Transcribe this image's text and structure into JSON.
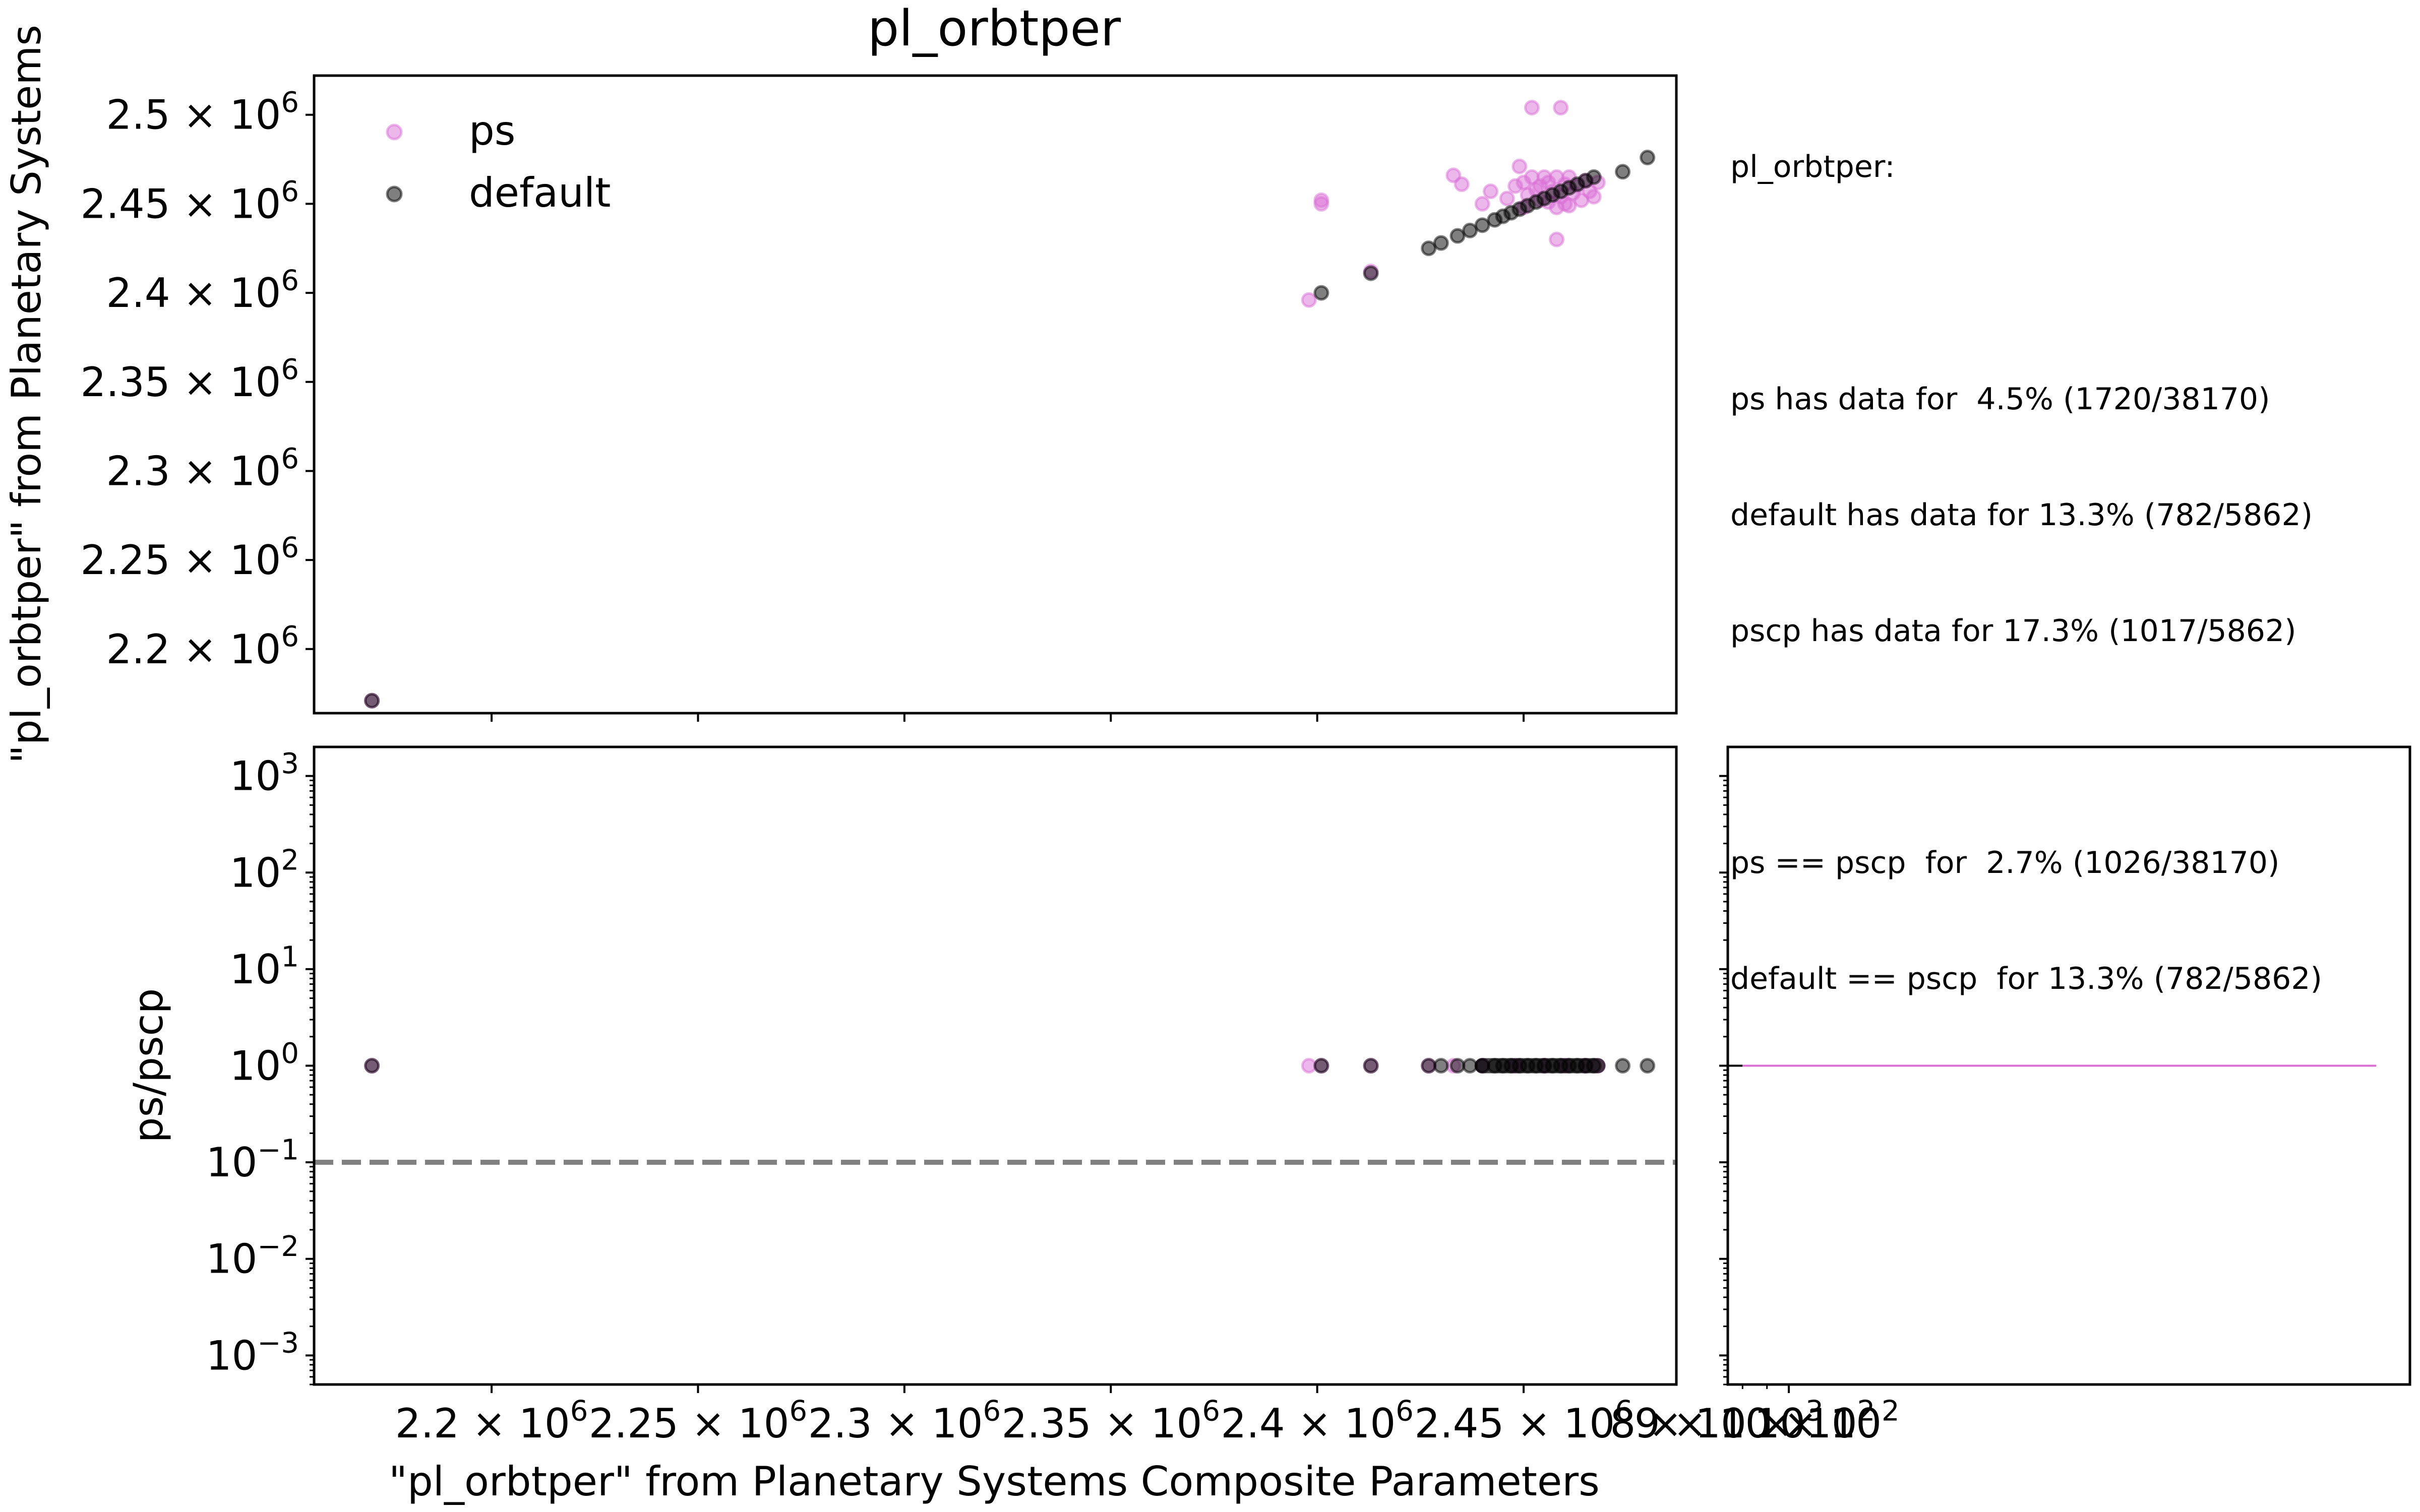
{
  "title": "pl_orbtper",
  "legend": [
    {
      "name": "ps",
      "color": "#da70d6"
    },
    {
      "name": "default",
      "color": "#000000"
    }
  ],
  "stats_lines": [
    "pl_orbtper:",
    "",
    "ps has data for  4.5% (1720/38170)",
    "default has data for 13.3% (782/5862)",
    "pscp has data for 17.3% (1017/5862)",
    "",
    "ps == pscp  for  2.7% (1026/38170)",
    "default == pscp  for 13.3% (782/5862)"
  ],
  "chart_data": [
    {
      "type": "scatter",
      "panel": "top",
      "title": "pl_orbtper",
      "xlabel": "",
      "ylabel": "\"pl_orbtper\" from Planetary Systems",
      "xlim": [
        2157000,
        2487000
      ],
      "ylim": [
        2164000,
        2522000
      ],
      "yticks": [
        2200000,
        2250000,
        2300000,
        2350000,
        2400000,
        2450000,
        2500000
      ],
      "ytick_labels": [
        {
          "base": "2.2",
          "exp": "6"
        },
        {
          "base": "2.25",
          "exp": "6"
        },
        {
          "base": "2.3",
          "exp": "6"
        },
        {
          "base": "2.35",
          "exp": "6"
        },
        {
          "base": "2.4",
          "exp": "6"
        },
        {
          "base": "2.45",
          "exp": "6"
        },
        {
          "base": "2.5",
          "exp": "6"
        }
      ],
      "xticks": [
        2200000,
        2250000,
        2300000,
        2350000,
        2400000,
        2450000
      ],
      "legend_position": "upper-left",
      "grid": false,
      "series": [
        {
          "name": "ps",
          "color": "#da70d6",
          "points": [
            [
              2171000,
              2171000
            ],
            [
              2398000,
              2396000
            ],
            [
              2401000,
              2452000
            ],
            [
              2401000,
              2450000
            ],
            [
              2413000,
              2412000
            ],
            [
              2433000,
              2466000
            ],
            [
              2435000,
              2461000
            ],
            [
              2440000,
              2450000
            ],
            [
              2442000,
              2457000
            ],
            [
              2446000,
              2453000
            ],
            [
              2448000,
              2460000
            ],
            [
              2449000,
              2471000
            ],
            [
              2450000,
              2462000
            ],
            [
              2451000,
              2455000
            ],
            [
              2452000,
              2465000
            ],
            [
              2453000,
              2458000
            ],
            [
              2454000,
              2452000
            ],
            [
              2454000,
              2460000
            ],
            [
              2455000,
              2465000
            ],
            [
              2456000,
              2451000
            ],
            [
              2456000,
              2462000
            ],
            [
              2457000,
              2457000
            ],
            [
              2458000,
              2448000
            ],
            [
              2458000,
              2465000
            ],
            [
              2459000,
              2454000
            ],
            [
              2460000,
              2461000
            ],
            [
              2460000,
              2450000
            ],
            [
              2461000,
              2465000
            ],
            [
              2462000,
              2456000
            ],
            [
              2463000,
              2460000
            ],
            [
              2464000,
              2452000
            ],
            [
              2465000,
              2463000
            ],
            [
              2466000,
              2457000
            ],
            [
              2467000,
              2454000
            ],
            [
              2468000,
              2462000
            ],
            [
              2452000,
              2504000
            ],
            [
              2459000,
              2504000
            ],
            [
              2458000,
              2430000
            ],
            [
              2450000,
              2448000
            ],
            [
              2461000,
              2449000
            ]
          ]
        },
        {
          "name": "default",
          "color": "#000000",
          "points": [
            [
              2171000,
              2171000
            ],
            [
              2401000,
              2400000
            ],
            [
              2413000,
              2411000
            ],
            [
              2427000,
              2425000
            ],
            [
              2430000,
              2428000
            ],
            [
              2434000,
              2432000
            ],
            [
              2437000,
              2435000
            ],
            [
              2440000,
              2438000
            ],
            [
              2443000,
              2441000
            ],
            [
              2445000,
              2443000
            ],
            [
              2447000,
              2445000
            ],
            [
              2449000,
              2447000
            ],
            [
              2451000,
              2449000
            ],
            [
              2453000,
              2451000
            ],
            [
              2455000,
              2453000
            ],
            [
              2457000,
              2455000
            ],
            [
              2459000,
              2457000
            ],
            [
              2461000,
              2459000
            ],
            [
              2463000,
              2461000
            ],
            [
              2465000,
              2463000
            ],
            [
              2467000,
              2465000
            ],
            [
              2474000,
              2468000
            ],
            [
              2480000,
              2476000
            ]
          ]
        }
      ]
    },
    {
      "type": "scatter",
      "panel": "bottom-left",
      "xlabel": "\"pl_orbtper\" from Planetary Systems Composite Parameters",
      "ylabel": "ps/pscp",
      "xlim": [
        2157000,
        2487000
      ],
      "ylim": [
        0.0005,
        2000
      ],
      "yscale": "log",
      "xticks": [
        2200000,
        2250000,
        2300000,
        2350000,
        2400000,
        2450000
      ],
      "xtick_labels": [
        {
          "base": "2.2",
          "exp": "6"
        },
        {
          "base": "2.25",
          "exp": "6"
        },
        {
          "base": "2.3",
          "exp": "6"
        },
        {
          "base": "2.35",
          "exp": "6"
        },
        {
          "base": "2.4",
          "exp": "6"
        },
        {
          "base": "2.45",
          "exp": "6"
        }
      ],
      "yticks": [
        0.001,
        0.01,
        0.1,
        1,
        10,
        100,
        1000
      ],
      "ytick_labels": [
        {
          "base": "10",
          "exp": "−3"
        },
        {
          "base": "10",
          "exp": "−2"
        },
        {
          "base": "10",
          "exp": "−1"
        },
        {
          "base": "10",
          "exp": "0"
        },
        {
          "base": "10",
          "exp": "1"
        },
        {
          "base": "10",
          "exp": "2"
        },
        {
          "base": "10",
          "exp": "3"
        }
      ],
      "reference_line": {
        "y": 0.1,
        "style": "dashed",
        "color": "#808080"
      },
      "series": [
        {
          "name": "ps",
          "color": "#da70d6",
          "x": [
            2171000,
            2398000,
            2401000,
            2413000,
            2427000,
            2433000,
            2440000,
            2448000,
            2455000,
            2460000,
            2465000,
            2468000
          ],
          "y": [
            1,
            1,
            1,
            1,
            1,
            1,
            1,
            1,
            1,
            1,
            1,
            1
          ]
        },
        {
          "name": "default",
          "color": "#000000",
          "x": [
            2171000,
            2401000,
            2413000,
            2427000,
            2430000,
            2434000,
            2437000,
            2440000,
            2443000,
            2445000,
            2447000,
            2449000,
            2451000,
            2453000,
            2455000,
            2457000,
            2459000,
            2461000,
            2463000,
            2465000,
            2467000,
            2474000,
            2480000
          ],
          "y": [
            1,
            1,
            1,
            1,
            1,
            1,
            1,
            1,
            1,
            1,
            1,
            1,
            1,
            1,
            1,
            1,
            1,
            1,
            1,
            1,
            1,
            1,
            1
          ]
        }
      ]
    },
    {
      "type": "line",
      "panel": "bottom-right",
      "xscale": "log",
      "xlim": [
        745,
        20000
      ],
      "ylim": [
        0.0005,
        2000
      ],
      "yscale": "log",
      "xtick_labels": [
        {
          "value": 800,
          "base": "8 × 10",
          "exp": "2"
        },
        {
          "value": 900,
          "base": "9 × 10",
          "exp": "2"
        },
        {
          "value": 1000,
          "base": "10",
          "exp": "3"
        }
      ],
      "series": [
        {
          "name": "default",
          "color": "#000000",
          "x": [
            745,
            800
          ],
          "y": [
            1,
            1
          ]
        },
        {
          "name": "ps",
          "color": "#da70d6",
          "x": [
            800,
            17000
          ],
          "y": [
            1,
            1
          ]
        }
      ]
    }
  ]
}
